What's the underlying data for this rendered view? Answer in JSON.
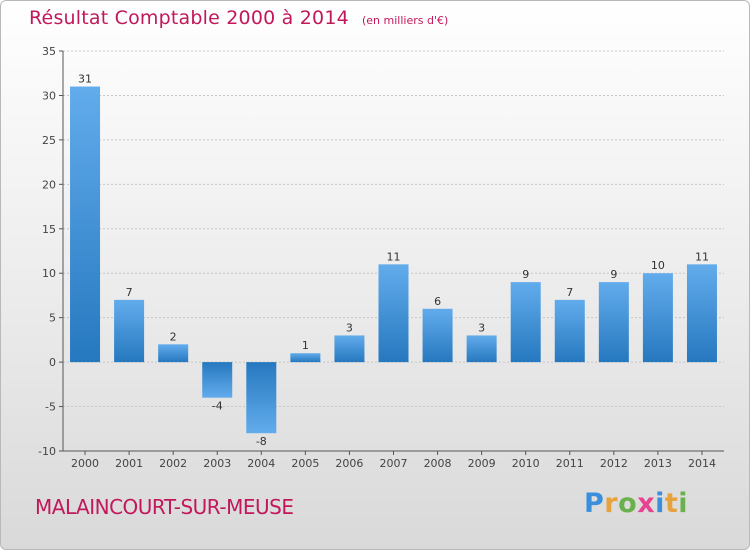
{
  "chart_data": {
    "type": "bar",
    "title": "Résultat Comptable 2000 à 2014",
    "subtitle": "(en milliers d'€)",
    "categories": [
      "2000",
      "2001",
      "2002",
      "2003",
      "2004",
      "2005",
      "2006",
      "2007",
      "2008",
      "2009",
      "2010",
      "2011",
      "2012",
      "2013",
      "2014"
    ],
    "values": [
      31,
      7,
      2,
      -4,
      -8,
      1,
      3,
      11,
      6,
      3,
      9,
      7,
      9,
      10,
      11
    ],
    "data_labels": [
      "31",
      "7",
      "2",
      "-4",
      "-8",
      "1",
      "3",
      "11",
      "6",
      "3",
      "9",
      "7",
      "9",
      "10",
      "11"
    ],
    "ylim": [
      -10,
      35
    ],
    "yticks": [
      -10,
      -5,
      0,
      5,
      10,
      15,
      20,
      25,
      30,
      35
    ],
    "ytick_labels": [
      "-10",
      "-5",
      "0",
      "5",
      "10",
      "15",
      "20",
      "25",
      "30",
      "35"
    ],
    "grid": true,
    "xlabel": "",
    "ylabel": "",
    "bar_color": "#3b8fd9"
  },
  "footer": {
    "place_name": "MALAINCOURT-SUR-MEUSE",
    "logo_letters": [
      "P",
      "r",
      "o",
      "x",
      "i",
      "t",
      "i"
    ],
    "logo_colors": [
      "#3a8edb",
      "#e6a23c",
      "#6ab04c",
      "#e84393",
      "#3a8edb",
      "#e6a23c",
      "#6ab04c"
    ]
  }
}
